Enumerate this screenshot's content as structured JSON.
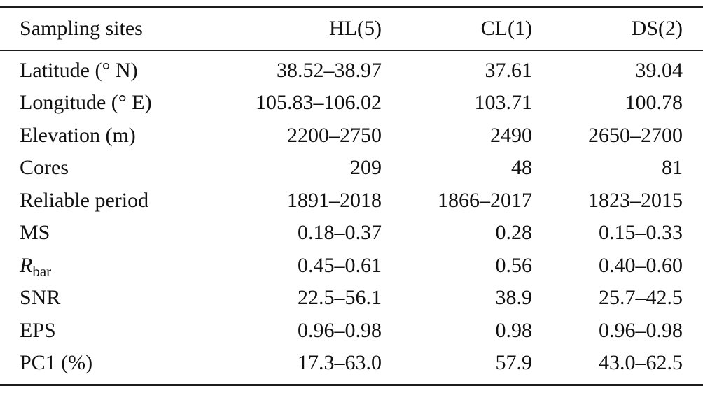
{
  "table": {
    "columns": [
      "Sampling sites",
      "HL(5)",
      "CL(1)",
      "DS(2)"
    ],
    "rows": [
      {
        "label": "Latitude (° N)",
        "values": [
          "38.52–38.97",
          "37.61",
          "39.04"
        ]
      },
      {
        "label": "Longitude (° E)",
        "values": [
          "105.83–106.02",
          "103.71",
          "100.78"
        ]
      },
      {
        "label": "Elevation (m)",
        "values": [
          "2200–2750",
          "2490",
          "2650–2700"
        ]
      },
      {
        "label": "Cores",
        "values": [
          "209",
          "48",
          "81"
        ]
      },
      {
        "label": "Reliable period",
        "values": [
          "1891–2018",
          "1866–2017",
          "1823–2015"
        ]
      },
      {
        "label": "MS",
        "values": [
          "0.18–0.37",
          "0.28",
          "0.15–0.33"
        ]
      },
      {
        "label_main": "R",
        "label_sub": "bar",
        "values": [
          "0.45–0.61",
          "0.56",
          "0.40–0.60"
        ]
      },
      {
        "label": "SNR",
        "values": [
          "22.5–56.1",
          "38.9",
          "25.7–42.5"
        ]
      },
      {
        "label": "EPS",
        "values": [
          "0.96–0.98",
          "0.98",
          "0.96–0.98"
        ]
      },
      {
        "label": "PC1 (%)",
        "values": [
          "17.3–63.0",
          "57.9",
          "43.0–62.5"
        ]
      }
    ]
  }
}
